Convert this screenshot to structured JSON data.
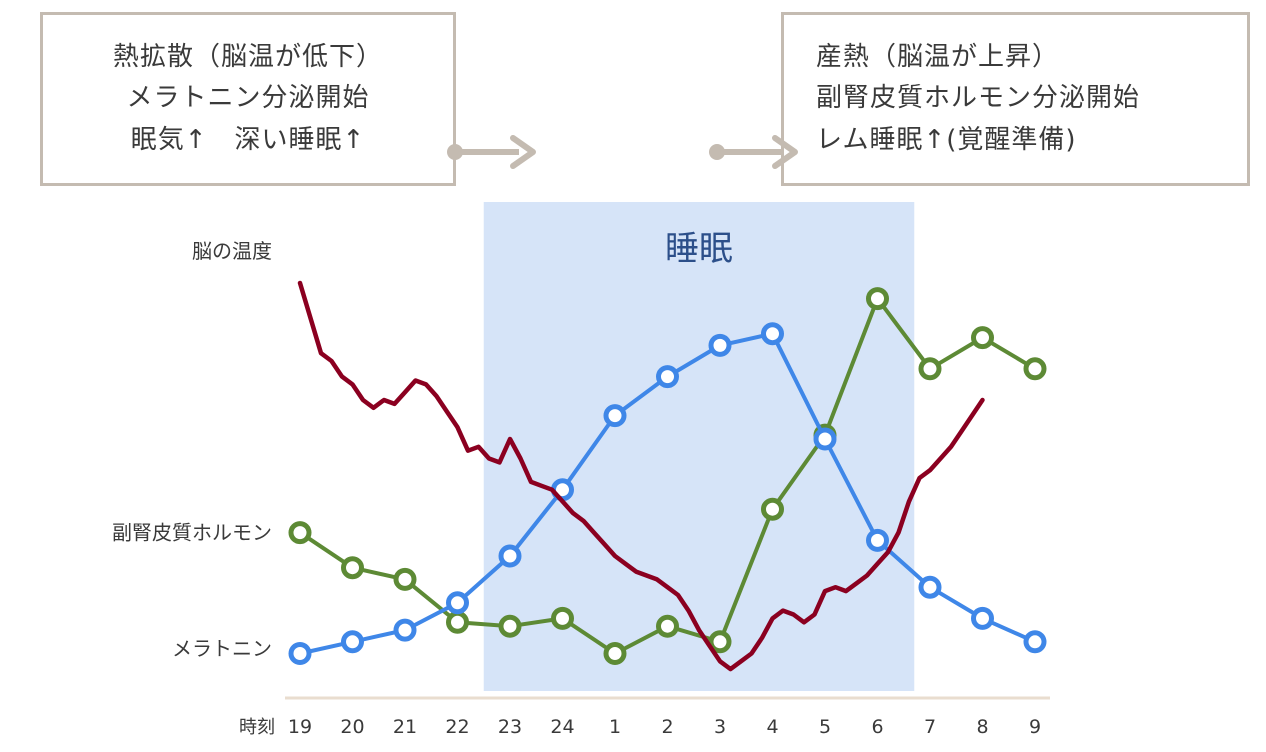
{
  "header": {
    "left_box": {
      "lines": [
        "熱拡散（脳温が低下）",
        "メラトニン分泌開始",
        "眠気↑　深い睡眠↑"
      ]
    },
    "right_box": {
      "lines": [
        "産熱（脳温が上昇）",
        "副腎皮質ホルモン分泌開始",
        "レム睡眠↑(覚醒準備)"
      ]
    }
  },
  "chart_data": {
    "type": "line",
    "title": "",
    "xlabel": "時刻",
    "ylabel": "",
    "categories": [
      "19",
      "20",
      "21",
      "22",
      "23",
      "24",
      "1",
      "2",
      "3",
      "4",
      "5",
      "6",
      "7",
      "8",
      "9"
    ],
    "shaded_region": {
      "label": "睡眠",
      "from": 22.5,
      "to": 30.7,
      "color": "#d6e4f8",
      "label_color": "#2c4f8a"
    },
    "y_range": [
      0,
      100
    ],
    "grid": false,
    "legend": "labels-left",
    "series": [
      {
        "name": "副腎皮質ホルモン",
        "color": "#5d8a35",
        "markers": true,
        "values": [
          36,
          27,
          24,
          13,
          12,
          14,
          5,
          12,
          8,
          42,
          61,
          96,
          78,
          86,
          78
        ]
      },
      {
        "name": "メラトニン",
        "color": "#3f87e8",
        "markers": true,
        "values": [
          5,
          8,
          11,
          18,
          30,
          47,
          66,
          76,
          84,
          87,
          60,
          34,
          22,
          14,
          8
        ]
      },
      {
        "name": "脳の温度",
        "color": "#8b0020",
        "markers": false,
        "x": [
          19.0,
          19.4,
          19.6,
          19.8,
          20.0,
          20.2,
          20.4,
          20.6,
          20.8,
          21.0,
          21.2,
          21.4,
          21.6,
          21.8,
          22.0,
          22.2,
          22.4,
          22.6,
          22.8,
          23.0,
          23.2,
          23.4,
          23.6,
          23.8,
          24.0,
          24.2,
          24.4,
          24.6,
          24.8,
          25.0,
          25.2,
          25.4,
          25.6,
          25.8,
          26.0,
          26.2,
          26.4,
          26.6,
          26.8,
          27.0,
          27.2,
          27.4,
          27.6,
          27.8,
          28.0,
          28.2,
          28.4,
          28.6,
          28.8,
          29.0,
          29.2,
          29.4,
          29.6,
          29.8,
          30.0,
          30.2,
          30.4,
          30.6,
          30.8,
          31.0,
          31.2,
          31.4,
          31.6,
          31.8,
          32.0
        ],
        "y": [
          100,
          82,
          80,
          76,
          74,
          70,
          68,
          70,
          69,
          72,
          75,
          74,
          71,
          67,
          63,
          57,
          58,
          55,
          54,
          60,
          55,
          49,
          48,
          47,
          44,
          41,
          39,
          36,
          33,
          30,
          28,
          26,
          25,
          24,
          22,
          20,
          16,
          11,
          7,
          3,
          1,
          3,
          5,
          9,
          14,
          16,
          15,
          13,
          15,
          21,
          22,
          21,
          23,
          25,
          28,
          31,
          36,
          44,
          50,
          52,
          55,
          58,
          62,
          66,
          70
        ]
      }
    ],
    "series_labels": [
      "脳の温度",
      "副腎皮質ホルモン",
      "メラトニン"
    ]
  },
  "colors": {
    "box_border": "#c4bbb1",
    "arrow": "#c4bbb1",
    "axis": "#e9ddcf",
    "text": "#3a3a3a"
  }
}
